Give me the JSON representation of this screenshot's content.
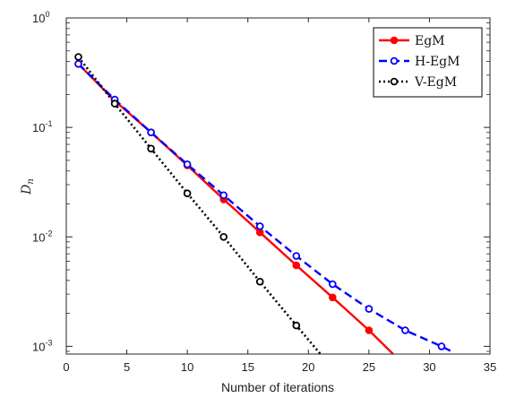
{
  "chart_data": {
    "type": "line",
    "title": "",
    "xlabel": "Number of iterations",
    "ylabel": "D",
    "ylabel_subscript": "n",
    "xlim": [
      0,
      35
    ],
    "ylim": [
      0.00085,
      1
    ],
    "yscale": "log",
    "xticks": [
      0,
      5,
      10,
      15,
      20,
      25,
      30,
      35
    ],
    "yticks": [
      {
        "value": 1,
        "base": "10",
        "exp": "0"
      },
      {
        "value": 0.1,
        "base": "10",
        "exp": "-1"
      },
      {
        "value": 0.01,
        "base": "10",
        "exp": "-2"
      },
      {
        "value": 0.001,
        "base": "10",
        "exp": "-3"
      }
    ],
    "grid": false,
    "legend_position": "top-right",
    "series": [
      {
        "name": "EgM",
        "color": "#ff0000",
        "dash": "solid",
        "marker": "filled-circle",
        "x": [
          1,
          4,
          7,
          10,
          13,
          16,
          19,
          22,
          25,
          27
        ],
        "y": [
          0.38,
          0.175,
          0.09,
          0.045,
          0.022,
          0.011,
          0.0055,
          0.0028,
          0.0014,
          0.00085
        ],
        "marker_x": [
          1,
          4,
          7,
          10,
          13,
          16,
          19,
          22,
          25
        ]
      },
      {
        "name": "H-EgM",
        "color": "#0000ff",
        "dash": "dashed",
        "marker": "open-circle",
        "x": [
          1,
          4,
          7,
          10,
          13,
          16,
          19,
          22,
          25,
          28,
          31,
          32
        ],
        "y": [
          0.38,
          0.18,
          0.09,
          0.046,
          0.024,
          0.0125,
          0.0067,
          0.0037,
          0.0022,
          0.0014,
          0.001,
          0.00088
        ],
        "marker_x": [
          1,
          4,
          7,
          10,
          13,
          16,
          19,
          22,
          25,
          28,
          31
        ]
      },
      {
        "name": "V-EgM",
        "color": "#000000",
        "dash": "dotted",
        "marker": "open-circle",
        "x": [
          1,
          4,
          7,
          10,
          13,
          16,
          19,
          21
        ],
        "y": [
          0.44,
          0.165,
          0.064,
          0.025,
          0.01,
          0.0039,
          0.00155,
          0.00085
        ],
        "marker_x": [
          1,
          4,
          7,
          10,
          13,
          16,
          19
        ]
      }
    ]
  }
}
